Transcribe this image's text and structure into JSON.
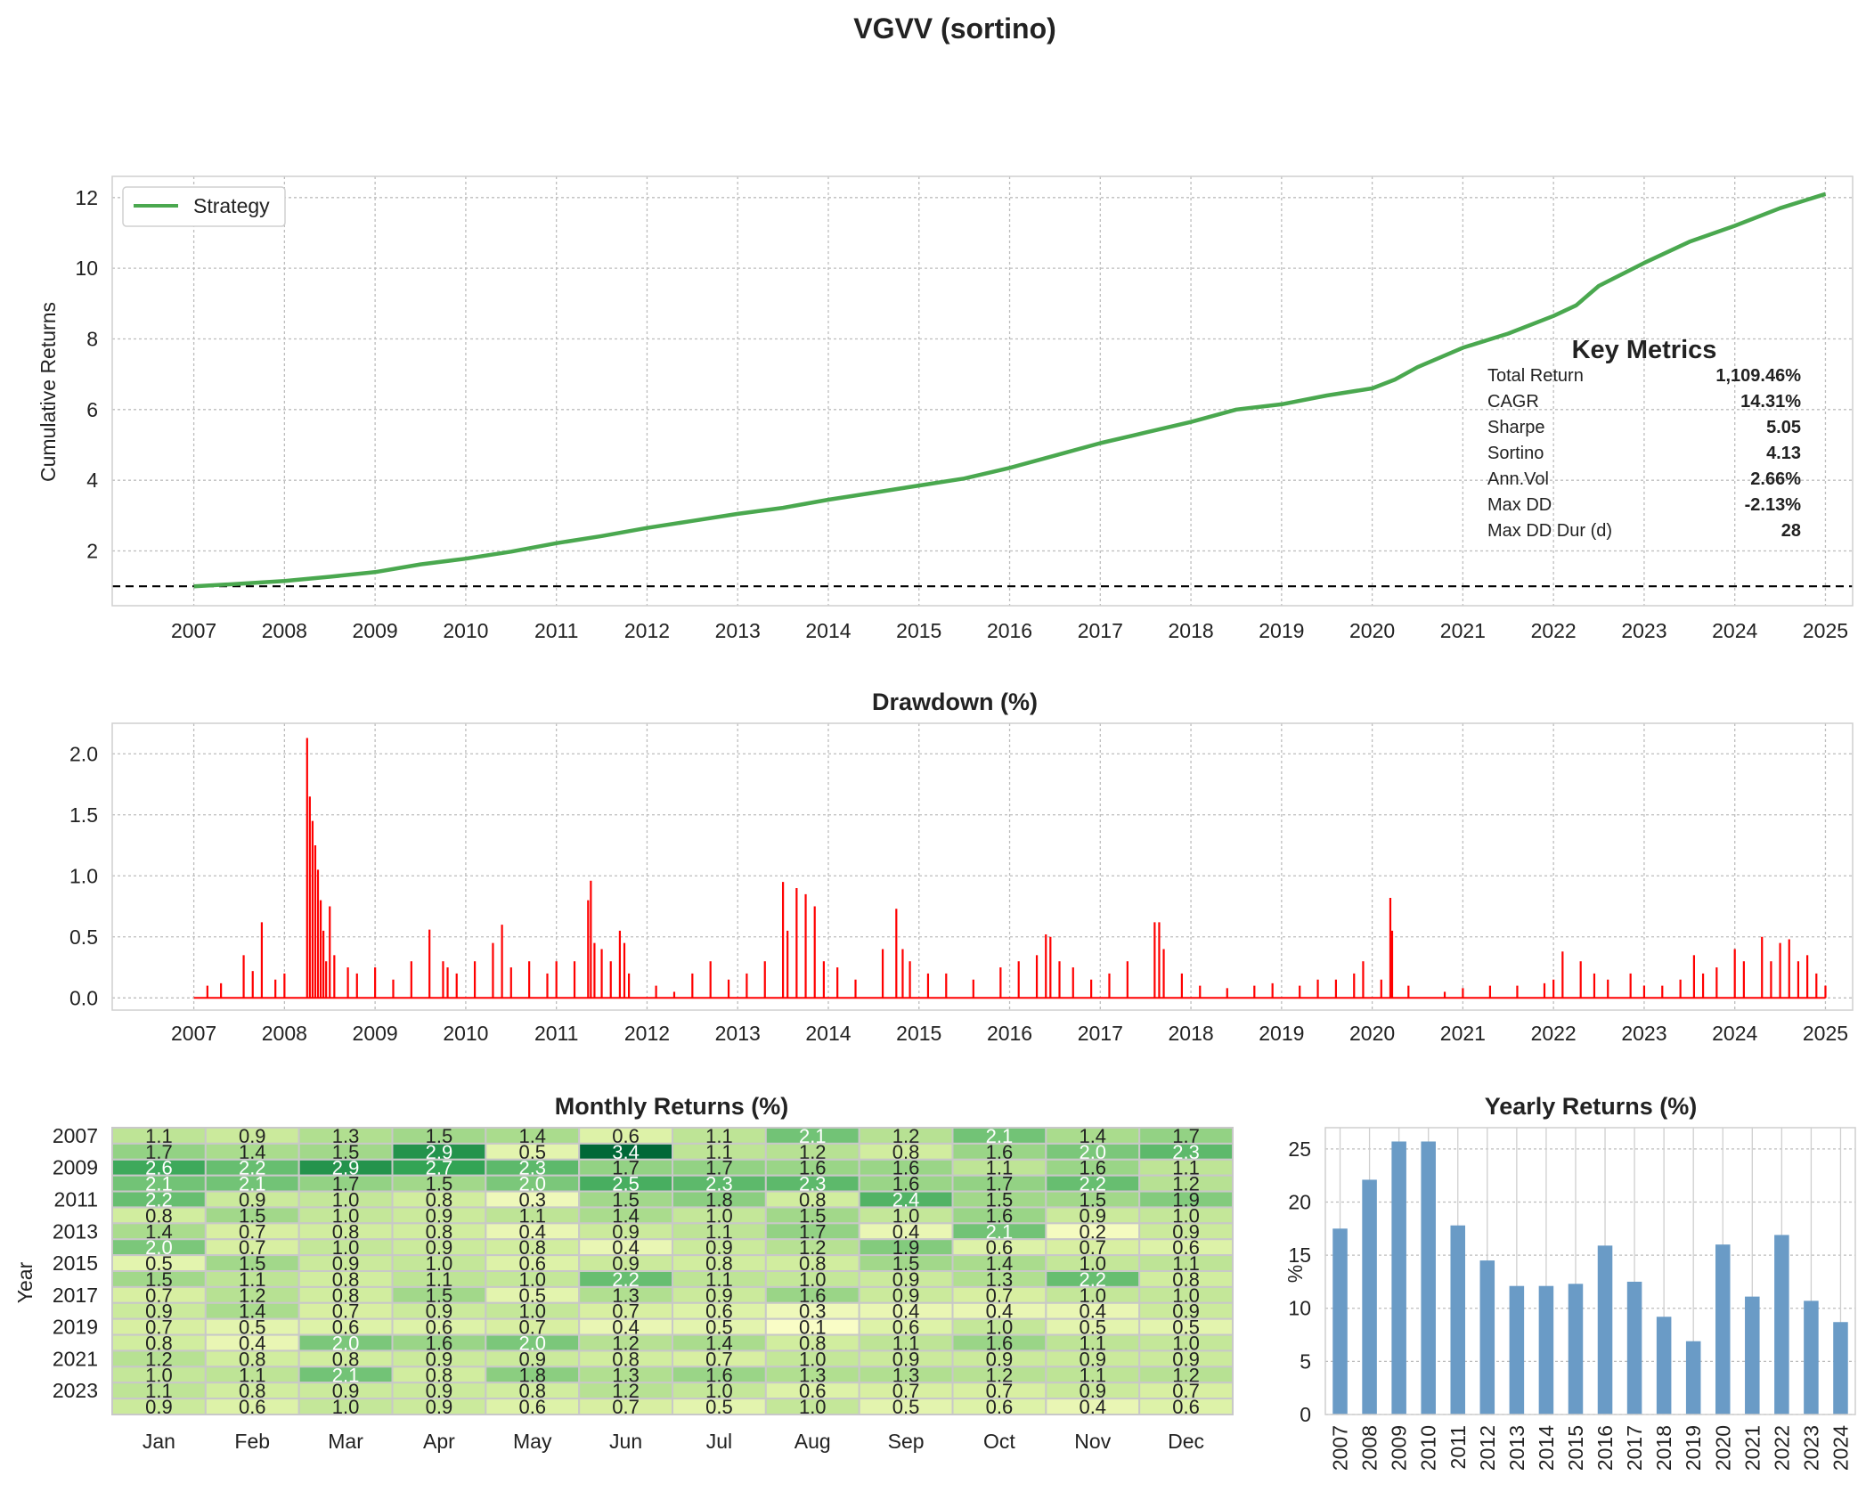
{
  "figure": {
    "title": "VGVV (sortino)"
  },
  "chart_data": [
    {
      "id": "cumulative",
      "type": "line",
      "title": "",
      "xlabel": "",
      "ylabel": "Cumulative Returns",
      "x_ticks": [
        "2007",
        "2008",
        "2009",
        "2010",
        "2011",
        "2012",
        "2013",
        "2014",
        "2015",
        "2016",
        "2017",
        "2018",
        "2019",
        "2020",
        "2021",
        "2022",
        "2023",
        "2024",
        "2025"
      ],
      "xlim": [
        2006.1,
        2025.3
      ],
      "ylim": [
        0.45,
        12.6
      ],
      "y_ticks": [
        2,
        4,
        6,
        8,
        10,
        12
      ],
      "grid": true,
      "legend": {
        "position": "top-left",
        "entries": [
          "Strategy"
        ]
      },
      "reference_line": {
        "y": 1.0,
        "style": "dashed",
        "color": "#000000"
      },
      "series": [
        {
          "name": "Strategy",
          "color": "#4aa84f",
          "x": [
            2007.0,
            2007.5,
            2008.0,
            2008.5,
            2009.0,
            2009.5,
            2010.0,
            2010.5,
            2011.0,
            2011.5,
            2012.0,
            2012.5,
            2013.0,
            2013.5,
            2014.0,
            2014.5,
            2015.0,
            2015.5,
            2016.0,
            2016.5,
            2017.0,
            2017.5,
            2018.0,
            2018.5,
            2019.0,
            2019.5,
            2020.0,
            2020.25,
            2020.5,
            2021.0,
            2021.5,
            2022.0,
            2022.25,
            2022.5,
            2023.0,
            2023.5,
            2024.0,
            2024.5,
            2025.0
          ],
          "y": [
            1.0,
            1.07,
            1.15,
            1.27,
            1.4,
            1.62,
            1.78,
            1.98,
            2.22,
            2.42,
            2.65,
            2.85,
            3.05,
            3.22,
            3.45,
            3.65,
            3.85,
            4.05,
            4.35,
            4.7,
            5.05,
            5.35,
            5.65,
            6.0,
            6.15,
            6.4,
            6.6,
            6.85,
            7.2,
            7.75,
            8.15,
            8.65,
            8.95,
            9.5,
            10.15,
            10.75,
            11.2,
            11.7,
            12.1
          ]
        }
      ]
    },
    {
      "id": "drawdown",
      "type": "area",
      "title": "Drawdown (%)",
      "xlabel": "",
      "ylabel": "",
      "x_ticks": [
        "2007",
        "2008",
        "2009",
        "2010",
        "2011",
        "2012",
        "2013",
        "2014",
        "2015",
        "2016",
        "2017",
        "2018",
        "2019",
        "2020",
        "2021",
        "2022",
        "2023",
        "2024",
        "2025"
      ],
      "xlim": [
        2006.1,
        2025.3
      ],
      "ylim": [
        -0.1,
        2.25
      ],
      "y_ticks": [
        0.0,
        0.5,
        1.0,
        1.5,
        2.0
      ],
      "grid": true,
      "series": [
        {
          "name": "",
          "color": "#ff0000",
          "peaks_x": [
            2007.15,
            2007.3,
            2007.55,
            2007.65,
            2007.75,
            2007.9,
            2008.0,
            2008.25,
            2008.28,
            2008.31,
            2008.34,
            2008.37,
            2008.4,
            2008.43,
            2008.46,
            2008.5,
            2008.55,
            2008.7,
            2008.8,
            2009.0,
            2009.2,
            2009.4,
            2009.6,
            2009.75,
            2009.8,
            2009.9,
            2010.1,
            2010.3,
            2010.4,
            2010.5,
            2010.7,
            2010.9,
            2011.0,
            2011.2,
            2011.35,
            2011.38,
            2011.42,
            2011.5,
            2011.6,
            2011.7,
            2011.75,
            2011.8,
            2012.1,
            2012.3,
            2012.5,
            2012.7,
            2012.9,
            2013.1,
            2013.3,
            2013.5,
            2013.55,
            2013.65,
            2013.75,
            2013.85,
            2013.95,
            2014.1,
            2014.3,
            2014.6,
            2014.75,
            2014.82,
            2014.9,
            2015.1,
            2015.3,
            2015.6,
            2015.9,
            2016.1,
            2016.3,
            2016.4,
            2016.45,
            2016.55,
            2016.7,
            2016.9,
            2017.1,
            2017.3,
            2017.6,
            2017.65,
            2017.7,
            2017.9,
            2018.1,
            2018.4,
            2018.7,
            2018.9,
            2019.2,
            2019.4,
            2019.6,
            2019.8,
            2019.9,
            2020.1,
            2020.2,
            2020.22,
            2020.4,
            2020.8,
            2021.0,
            2021.3,
            2021.6,
            2021.9,
            2022.0,
            2022.1,
            2022.3,
            2022.45,
            2022.6,
            2022.85,
            2023.0,
            2023.2,
            2023.4,
            2023.55,
            2023.65,
            2023.8,
            2024.0,
            2024.1,
            2024.3,
            2024.4,
            2024.5,
            2024.6,
            2024.7,
            2024.8,
            2024.9,
            2025.0
          ],
          "peaks_y": [
            0.1,
            0.12,
            0.35,
            0.22,
            0.62,
            0.15,
            0.2,
            2.13,
            1.65,
            1.45,
            1.25,
            1.05,
            0.8,
            0.55,
            0.3,
            0.75,
            0.35,
            0.25,
            0.2,
            0.25,
            0.15,
            0.3,
            0.56,
            0.3,
            0.25,
            0.2,
            0.3,
            0.45,
            0.6,
            0.25,
            0.3,
            0.2,
            0.3,
            0.3,
            0.8,
            0.96,
            0.45,
            0.4,
            0.3,
            0.55,
            0.45,
            0.2,
            0.1,
            0.05,
            0.2,
            0.3,
            0.15,
            0.2,
            0.3,
            0.95,
            0.55,
            0.9,
            0.85,
            0.75,
            0.3,
            0.25,
            0.15,
            0.4,
            0.73,
            0.4,
            0.3,
            0.2,
            0.2,
            0.15,
            0.25,
            0.3,
            0.35,
            0.52,
            0.5,
            0.3,
            0.25,
            0.15,
            0.2,
            0.3,
            0.62,
            0.62,
            0.4,
            0.2,
            0.1,
            0.08,
            0.1,
            0.12,
            0.1,
            0.15,
            0.15,
            0.2,
            0.3,
            0.15,
            0.82,
            0.55,
            0.1,
            0.05,
            0.08,
            0.1,
            0.1,
            0.12,
            0.15,
            0.38,
            0.3,
            0.2,
            0.15,
            0.2,
            0.1,
            0.1,
            0.15,
            0.35,
            0.2,
            0.25,
            0.4,
            0.3,
            0.5,
            0.3,
            0.45,
            0.48,
            0.3,
            0.35,
            0.2,
            0.1
          ]
        }
      ]
    },
    {
      "id": "monthly",
      "type": "heatmap",
      "title": "Monthly Returns (%)",
      "xlabel": "",
      "ylabel": "Year",
      "columns": [
        "Jan",
        "Feb",
        "Mar",
        "Apr",
        "May",
        "Jun",
        "Jul",
        "Aug",
        "Sep",
        "Oct",
        "Nov",
        "Dec"
      ],
      "rows": [
        "2007",
        "2008",
        "2009",
        "2010",
        "2011",
        "2012",
        "2013",
        "2014",
        "2015",
        "2016",
        "2017",
        "2018",
        "2019",
        "2020",
        "2021",
        "2022",
        "2023",
        "2024"
      ],
      "y_tick_labels": [
        "2007",
        "2009",
        "2011",
        "2013",
        "2015",
        "2017",
        "2019",
        "2021",
        "2023"
      ],
      "values": [
        [
          1.1,
          0.9,
          1.3,
          1.5,
          1.4,
          0.6,
          1.1,
          2.1,
          1.2,
          2.1,
          1.4,
          1.7
        ],
        [
          1.7,
          1.4,
          1.5,
          2.9,
          0.5,
          3.4,
          1.1,
          1.2,
          0.8,
          1.6,
          2.0,
          2.3
        ],
        [
          2.6,
          2.2,
          2.9,
          2.7,
          2.3,
          1.7,
          1.7,
          1.6,
          1.6,
          1.1,
          1.6,
          1.1
        ],
        [
          2.1,
          2.1,
          1.7,
          1.5,
          2.0,
          2.5,
          2.3,
          2.3,
          1.6,
          1.7,
          2.2,
          1.2
        ],
        [
          2.2,
          0.9,
          1.0,
          0.8,
          0.3,
          1.5,
          1.8,
          0.8,
          2.4,
          1.5,
          1.5,
          1.9
        ],
        [
          0.8,
          1.5,
          1.0,
          0.9,
          1.1,
          1.4,
          1.0,
          1.5,
          1.0,
          1.6,
          0.9,
          1.0
        ],
        [
          1.4,
          0.7,
          0.8,
          0.8,
          0.4,
          0.9,
          1.1,
          1.7,
          0.4,
          2.1,
          0.2,
          0.9
        ],
        [
          2.0,
          0.7,
          1.0,
          0.9,
          0.8,
          0.4,
          0.9,
          1.2,
          1.9,
          0.6,
          0.7,
          0.6
        ],
        [
          0.5,
          1.5,
          0.9,
          1.0,
          0.6,
          0.9,
          0.8,
          0.8,
          1.5,
          1.4,
          1.0,
          1.1
        ],
        [
          1.5,
          1.1,
          0.8,
          1.1,
          1.0,
          2.2,
          1.1,
          1.0,
          0.9,
          1.3,
          2.2,
          0.8
        ],
        [
          0.7,
          1.2,
          0.8,
          1.5,
          0.5,
          1.3,
          0.9,
          1.6,
          0.9,
          0.7,
          1.0,
          1.0
        ],
        [
          0.9,
          1.4,
          0.7,
          0.9,
          1.0,
          0.7,
          0.6,
          0.3,
          0.4,
          0.4,
          0.4,
          0.9
        ],
        [
          0.7,
          0.5,
          0.6,
          0.6,
          0.7,
          0.4,
          0.5,
          0.1,
          0.6,
          1.0,
          0.5,
          0.5
        ],
        [
          0.8,
          0.4,
          2.0,
          1.6,
          2.0,
          1.2,
          1.4,
          0.8,
          1.1,
          1.6,
          1.1,
          1.0
        ],
        [
          1.2,
          0.8,
          0.8,
          0.9,
          0.9,
          0.8,
          0.7,
          1.0,
          0.9,
          0.9,
          0.9,
          0.9
        ],
        [
          1.0,
          1.1,
          2.1,
          0.8,
          1.8,
          1.3,
          1.6,
          1.3,
          1.3,
          1.2,
          1.1,
          1.2
        ],
        [
          1.1,
          0.8,
          0.9,
          0.9,
          0.8,
          1.2,
          1.0,
          0.6,
          0.7,
          0.7,
          0.9,
          0.7
        ],
        [
          0.9,
          0.6,
          1.0,
          0.9,
          0.6,
          0.7,
          0.5,
          1.0,
          0.5,
          0.6,
          0.4,
          0.6
        ]
      ],
      "colormap": "yellow-green",
      "vmin": 0.0,
      "vmax": 3.4
    },
    {
      "id": "yearly",
      "type": "bar",
      "title": "Yearly Returns (%)",
      "xlabel": "",
      "ylabel": "%",
      "color": "#6a9bc6",
      "categories": [
        "2007",
        "2008",
        "2009",
        "2010",
        "2011",
        "2012",
        "2013",
        "2014",
        "2015",
        "2016",
        "2017",
        "2018",
        "2019",
        "2020",
        "2021",
        "2022",
        "2023",
        "2024"
      ],
      "values": [
        17.5,
        22.1,
        25.7,
        25.7,
        17.8,
        14.5,
        12.1,
        12.1,
        12.3,
        15.9,
        12.5,
        9.2,
        6.9,
        16.0,
        11.1,
        16.9,
        10.7,
        8.7
      ],
      "ylim": [
        0,
        27
      ],
      "y_ticks": [
        0,
        5,
        10,
        15,
        20,
        25
      ],
      "grid": true
    }
  ],
  "key_metrics": {
    "title": "Key Metrics",
    "rows": [
      {
        "label": "Total Return",
        "value": "1,109.46%"
      },
      {
        "label": "CAGR",
        "value": "14.31%"
      },
      {
        "label": "Sharpe",
        "value": "5.05"
      },
      {
        "label": "Sortino",
        "value": "4.13"
      },
      {
        "label": "Ann.Vol",
        "value": "2.66%"
      },
      {
        "label": "Max DD",
        "value": "-2.13%"
      },
      {
        "label": "Max DD Dur (d)",
        "value": "28"
      }
    ]
  }
}
